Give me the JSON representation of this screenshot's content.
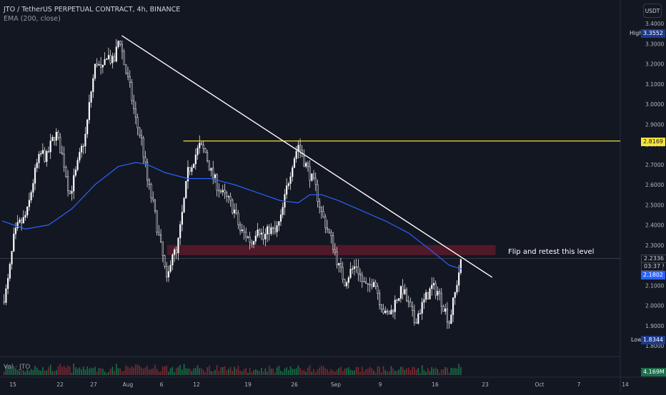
{
  "header": {
    "title": "JTO / TetherUS PERPETUAL CONTRACT, 4h, BINANCE",
    "indicator": "EMA (200, close)",
    "volume_label": "Vol · JTO"
  },
  "currency_button": "USDT",
  "colors": {
    "background": "#131722",
    "candle": "#ffffff",
    "ema": "#2962ff",
    "trendline": "#ffffff",
    "resistance": "#f5e33b",
    "zone": "#5a1a2a",
    "volume_up": "#1b6e4a",
    "volume_down": "#7a2a33",
    "grid_text": "#b2b5be"
  },
  "annotations": {
    "zone_label": "Flip and retest this level"
  },
  "price_tags": {
    "high_label": "High",
    "high_value": "3.3552",
    "low_label": "Low",
    "low_value": "1.8344",
    "resistance_value": "2.8169",
    "last_price": "2.2336",
    "countdown": "03:37",
    "ema_value": "2.1802",
    "volume_value": "4.169M"
  },
  "chart_data": {
    "type": "candlestick",
    "symbol": "JTO / TetherUS PERPETUAL CONTRACT",
    "interval": "4h",
    "exchange": "BINANCE",
    "y_axis_ticks": [
      "3.4000",
      "3.3000",
      "3.2000",
      "3.1000",
      "3.0000",
      "2.9000",
      "2.8000",
      "2.7000",
      "2.6000",
      "2.5000",
      "2.4000",
      "2.3000",
      "2.2000",
      "2.1000",
      "2.0000",
      "1.9000",
      "1.8000"
    ],
    "ylim": [
      1.8,
      3.4
    ],
    "x_axis_ticks": [
      "15",
      "22",
      "27",
      "Aug",
      "6",
      "12",
      "19",
      "26",
      "Sep",
      "9",
      "16",
      "23",
      "Oct",
      "7",
      "14"
    ],
    "close_path": [
      [
        0,
        2.02
      ],
      [
        0.4,
        2.08
      ],
      [
        0.7,
        2.2
      ],
      [
        1.0,
        2.33
      ],
      [
        1.4,
        2.4
      ],
      [
        1.8,
        2.42
      ],
      [
        2.2,
        2.47
      ],
      [
        2.6,
        2.6
      ],
      [
        3.0,
        2.7
      ],
      [
        3.4,
        2.76
      ],
      [
        3.8,
        2.73
      ],
      [
        4.2,
        2.8
      ],
      [
        4.6,
        2.86
      ],
      [
        5.0,
        2.78
      ],
      [
        5.4,
        2.69
      ],
      [
        5.8,
        2.55
      ],
      [
        6.3,
        2.65
      ],
      [
        6.8,
        2.77
      ],
      [
        7.2,
        2.85
      ],
      [
        7.6,
        3.04
      ],
      [
        8.1,
        3.22
      ],
      [
        8.6,
        3.15
      ],
      [
        9.0,
        3.25
      ],
      [
        9.6,
        3.2
      ],
      [
        10.1,
        3.34
      ],
      [
        10.5,
        3.2
      ],
      [
        11.0,
        3.08
      ],
      [
        11.5,
        2.92
      ],
      [
        12.0,
        2.82
      ],
      [
        12.5,
        2.62
      ],
      [
        13.0,
        2.5
      ],
      [
        13.5,
        2.34
      ],
      [
        13.9,
        2.22
      ],
      [
        14.2,
        2.1
      ],
      [
        14.6,
        2.27
      ],
      [
        15.0,
        2.25
      ],
      [
        15.5,
        2.45
      ],
      [
        16.0,
        2.66
      ],
      [
        16.5,
        2.73
      ],
      [
        17.0,
        2.79
      ],
      [
        17.5,
        2.76
      ],
      [
        18.0,
        2.66
      ],
      [
        18.5,
        2.6
      ],
      [
        19.0,
        2.55
      ],
      [
        19.5,
        2.52
      ],
      [
        20.0,
        2.47
      ],
      [
        20.5,
        2.37
      ],
      [
        21.0,
        2.35
      ],
      [
        21.5,
        2.31
      ],
      [
        22.0,
        2.4
      ],
      [
        22.5,
        2.33
      ],
      [
        23.0,
        2.38
      ],
      [
        23.5,
        2.36
      ],
      [
        24.0,
        2.43
      ],
      [
        24.5,
        2.58
      ],
      [
        25.0,
        2.71
      ],
      [
        25.5,
        2.8
      ],
      [
        26.0,
        2.72
      ],
      [
        26.5,
        2.65
      ],
      [
        27.0,
        2.58
      ],
      [
        27.5,
        2.46
      ],
      [
        28.0,
        2.38
      ],
      [
        28.5,
        2.3
      ],
      [
        29.0,
        2.19
      ],
      [
        29.5,
        2.12
      ],
      [
        30.0,
        2.17
      ],
      [
        30.5,
        2.2
      ],
      [
        31.0,
        2.12
      ],
      [
        31.5,
        2.08
      ],
      [
        32.0,
        2.14
      ],
      [
        32.5,
        2.03
      ],
      [
        33.0,
        1.95
      ],
      [
        33.5,
        1.97
      ],
      [
        34.0,
        2.04
      ],
      [
        34.5,
        2.08
      ],
      [
        35.0,
        2.0
      ],
      [
        35.5,
        1.92
      ],
      [
        36.0,
        1.98
      ],
      [
        36.5,
        2.04
      ],
      [
        37.0,
        2.09
      ],
      [
        37.5,
        2.07
      ],
      [
        38.0,
        2.0
      ],
      [
        38.5,
        1.92
      ],
      [
        39.0,
        2.06
      ],
      [
        39.3,
        2.16
      ],
      [
        39.6,
        2.23
      ]
    ],
    "ema_200": [
      [
        0,
        2.42
      ],
      [
        2,
        2.38
      ],
      [
        4,
        2.4
      ],
      [
        6,
        2.48
      ],
      [
        8,
        2.6
      ],
      [
        10,
        2.69
      ],
      [
        11.5,
        2.71
      ],
      [
        12.5,
        2.7
      ],
      [
        14,
        2.66
      ],
      [
        16,
        2.63
      ],
      [
        18,
        2.63
      ],
      [
        20,
        2.6
      ],
      [
        22,
        2.56
      ],
      [
        24,
        2.52
      ],
      [
        25.5,
        2.51
      ],
      [
        26.5,
        2.55
      ],
      [
        27.5,
        2.55
      ],
      [
        29,
        2.52
      ],
      [
        31,
        2.47
      ],
      [
        33,
        2.42
      ],
      [
        35,
        2.36
      ],
      [
        37,
        2.27
      ],
      [
        38.5,
        2.2
      ],
      [
        39.6,
        2.18
      ]
    ],
    "resistance_level": 2.8169,
    "zone": {
      "low": 2.25,
      "high": 2.3
    },
    "trendline": {
      "start": [
        10.3,
        3.34
      ],
      "end": [
        42.2,
        2.14
      ]
    },
    "high": 3.3552,
    "low": 1.8344,
    "last_price": 2.2336,
    "ema_last": 2.1802,
    "volume_last": "4.169M"
  }
}
